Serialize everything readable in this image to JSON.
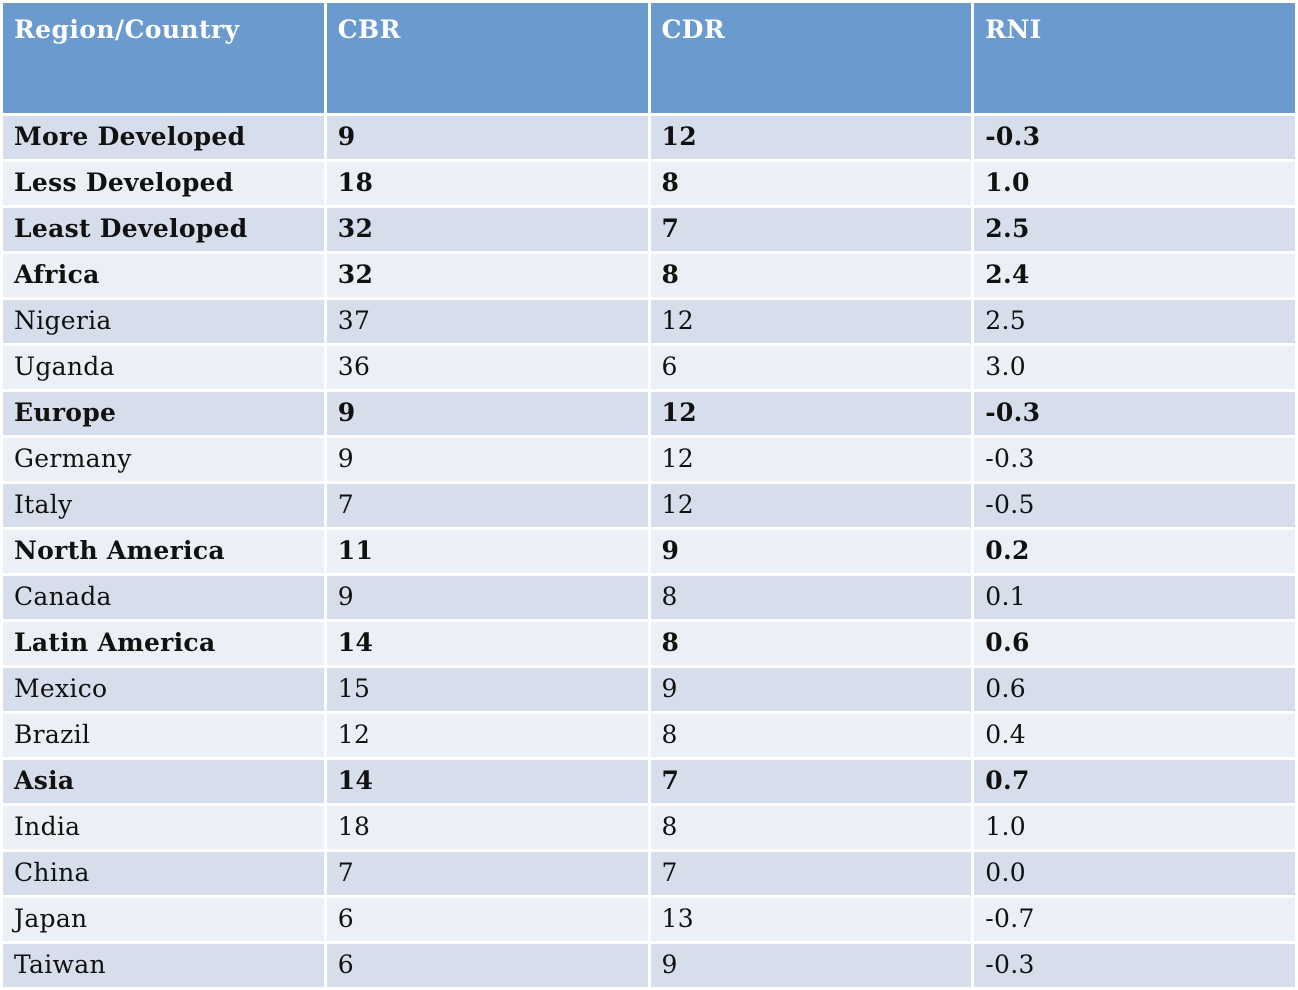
{
  "chart_data": {
    "type": "table",
    "title": "",
    "columns": [
      "Region/Country",
      "CBR",
      "CDR",
      "RNI"
    ],
    "rows": [
      {
        "label": "More Developed",
        "values": [
          "9",
          "12",
          "-0.3"
        ],
        "bold": true
      },
      {
        "label": "Less Developed",
        "values": [
          "18",
          "8",
          "1.0"
        ],
        "bold": true
      },
      {
        "label": "Least Developed",
        "values": [
          "32",
          "7",
          "2.5"
        ],
        "bold": true
      },
      {
        "label": "Africa",
        "values": [
          "32",
          "8",
          "2.4"
        ],
        "bold": true
      },
      {
        "label": "Nigeria",
        "values": [
          "37",
          "12",
          "2.5"
        ],
        "bold": false
      },
      {
        "label": "Uganda",
        "values": [
          "36",
          "6",
          "3.0"
        ],
        "bold": false
      },
      {
        "label": "Europe",
        "values": [
          "9",
          "12",
          "-0.3"
        ],
        "bold": true
      },
      {
        "label": "Germany",
        "values": [
          "9",
          "12",
          "-0.3"
        ],
        "bold": false
      },
      {
        "label": "Italy",
        "values": [
          "7",
          "12",
          "-0.5"
        ],
        "bold": false
      },
      {
        "label": "North America",
        "values": [
          "11",
          "9",
          "0.2"
        ],
        "bold": true
      },
      {
        "label": "Canada",
        "values": [
          "9",
          "8",
          "0.1"
        ],
        "bold": false
      },
      {
        "label": "Latin America",
        "values": [
          "14",
          "8",
          "0.6"
        ],
        "bold": true
      },
      {
        "label": "Mexico",
        "values": [
          "15",
          "9",
          "0.6"
        ],
        "bold": false
      },
      {
        "label": "Brazil",
        "values": [
          "12",
          "8",
          "0.4"
        ],
        "bold": false
      },
      {
        "label": "Asia",
        "values": [
          "14",
          "7",
          "0.7"
        ],
        "bold": true
      },
      {
        "label": "India",
        "values": [
          "18",
          "8",
          "1.0"
        ],
        "bold": false
      },
      {
        "label": "China",
        "values": [
          "7",
          "7",
          "0.0"
        ],
        "bold": false
      },
      {
        "label": "Japan",
        "values": [
          "6",
          "13",
          "-0.7"
        ],
        "bold": false
      },
      {
        "label": "Taiwan",
        "values": [
          "6",
          "9",
          "-0.3"
        ],
        "bold": false
      }
    ]
  },
  "colors": {
    "header_bg": "#6B9ACF",
    "header_text": "#FFFFFF",
    "row_odd_bg": "#D6DDEB",
    "row_even_bg": "#EBEFF6",
    "gap": "#FFFFFF",
    "text": "#111111"
  }
}
